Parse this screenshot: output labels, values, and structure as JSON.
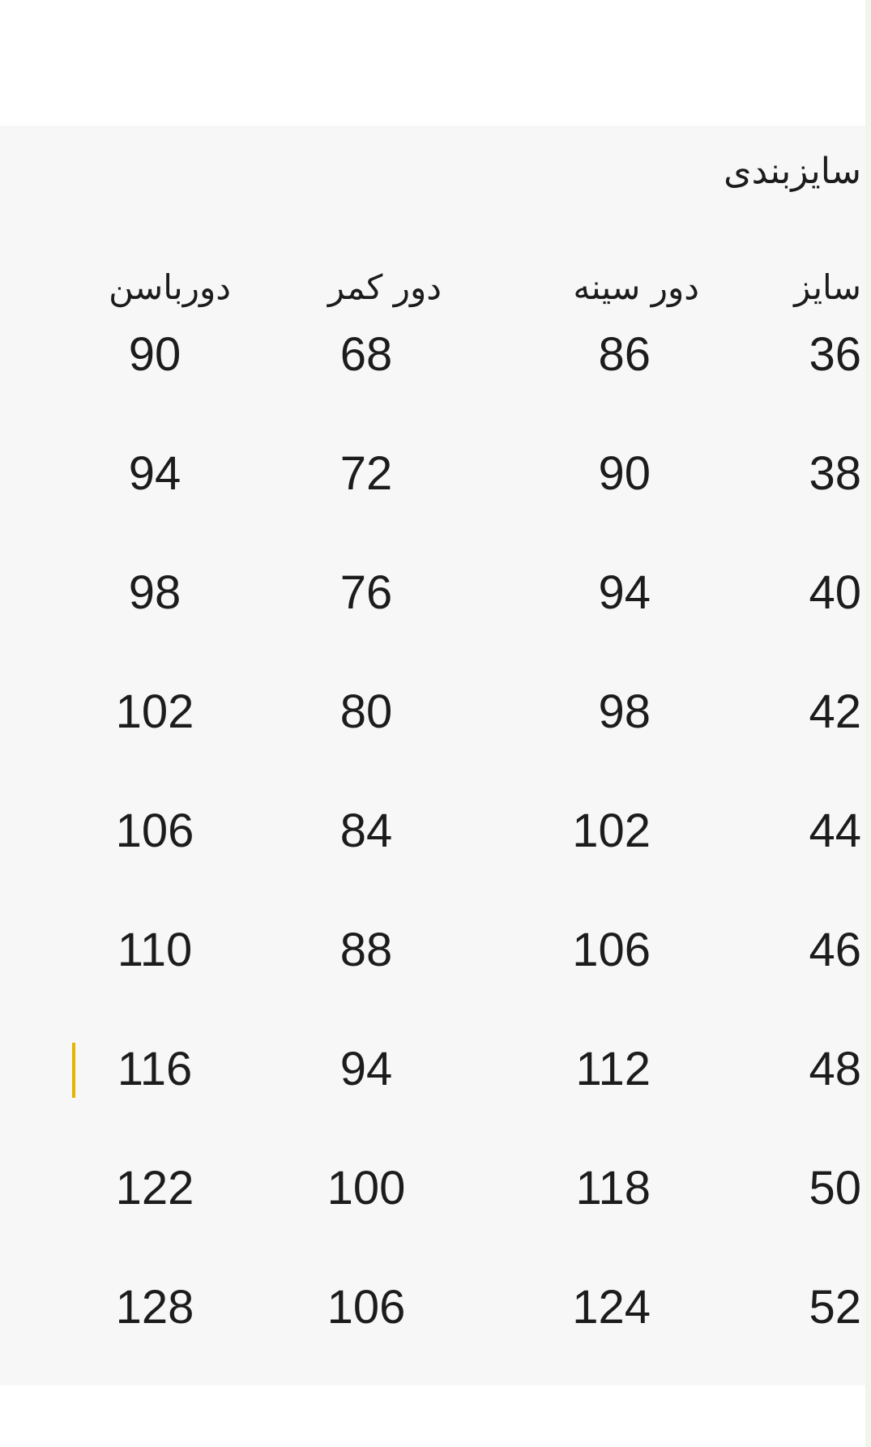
{
  "title": "سایزبندی",
  "table": {
    "headers": [
      "سایز",
      "دور سینه",
      "دور کمر",
      "دورباسن"
    ],
    "rows": [
      [
        "36",
        "86",
        "68",
        "90"
      ],
      [
        "38",
        "90",
        "72",
        "94"
      ],
      [
        "40",
        "94",
        "76",
        "98"
      ],
      [
        "42",
        "98",
        "80",
        "102"
      ],
      [
        "44",
        "102",
        "84",
        "106"
      ],
      [
        "46",
        "106",
        "88",
        "110"
      ],
      [
        "48",
        "112",
        "94",
        "116"
      ],
      [
        "50",
        "118",
        "100",
        "122"
      ],
      [
        "52",
        "124",
        "106",
        "128"
      ]
    ]
  },
  "colors": {
    "background": "#f7f7f7",
    "text": "#1c1c1c",
    "cursor": "#e6b400"
  }
}
